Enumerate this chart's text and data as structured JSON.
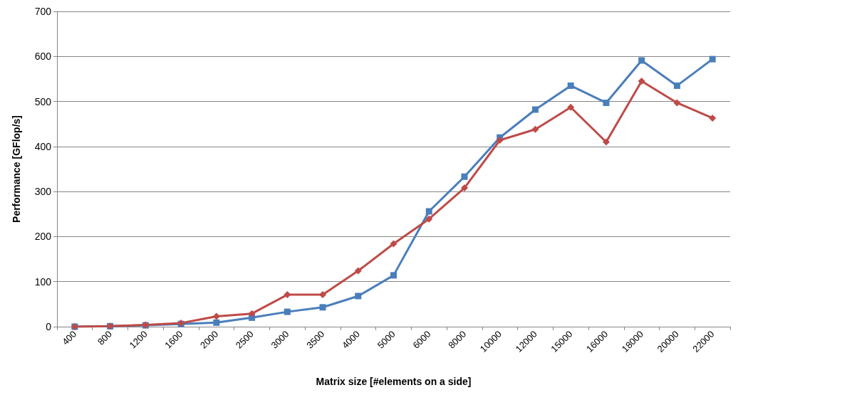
{
  "chart_data": {
    "type": "line",
    "xlabel": "Matrix size [#elements on a side]",
    "ylabel": "Performance [GFlop/s]",
    "categories": [
      "400",
      "800",
      "1200",
      "1600",
      "2000",
      "2500",
      "3000",
      "3500",
      "4000",
      "5000",
      "6000",
      "8000",
      "10000",
      "12000",
      "15000",
      "16000",
      "18000",
      "20000",
      "22000"
    ],
    "series": [
      {
        "color": "#4a7ebb",
        "marker": "square",
        "values": [
          0,
          1,
          3,
          6,
          9,
          20,
          33,
          43,
          68,
          114,
          256,
          333,
          420,
          482,
          535,
          497,
          591,
          535,
          594
        ]
      },
      {
        "color": "#be4b48",
        "marker": "diamond",
        "values": [
          0,
          1,
          4,
          8,
          23,
          29,
          71,
          71,
          124,
          184,
          239,
          308,
          414,
          438,
          487,
          410,
          545,
          497,
          463
        ]
      }
    ],
    "ylim": [
      0,
      700
    ],
    "yticks": [
      0,
      100,
      200,
      300,
      400,
      500,
      600,
      700
    ],
    "grid": "y"
  }
}
